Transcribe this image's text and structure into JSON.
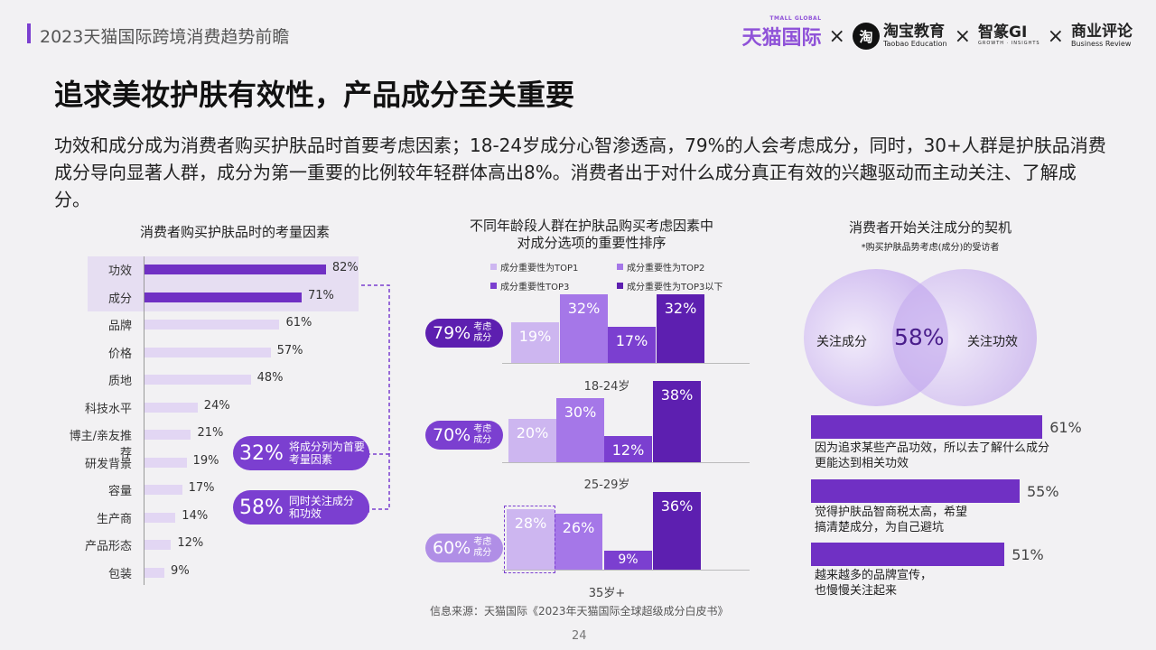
{
  "header": {
    "title": "2023天猫国际跨境消费趋势前瞻",
    "logos": {
      "tmall": "天猫国际",
      "tmall_small": "TMALL GLOBAL",
      "taobao": "淘宝教育",
      "taobao_small": "Taobao Education",
      "taobao_glyph": "淘",
      "zhizhuan": "智篆GI",
      "zhizhuan_small": "GROWTH · INSIGHTS",
      "shangye": "商业评论",
      "shangye_small": "Business Review",
      "x": "×"
    }
  },
  "main": {
    "title": "追求美妆护肤有效性，产品成分至关重要",
    "description": "功效和成分成为消费者购买护肤品时首要考虑因素；18-24岁成分心智渗透高，79%的人会考虑成分，同时，30+人群是护肤品消费成分导向显著人群，成分为第一重要的比例较年轻群体高出8%。消费者出于对什么成分真正有效的兴趣驱动而主动关注、了解成分。"
  },
  "callouts": {
    "c1_big": "32%",
    "c1_text": "将成分列为首要考量因素",
    "c2_big": "58%",
    "c2_text": "同时关注成分和功效"
  },
  "age_pills": [
    {
      "big": "79%",
      "sm": "考虑成分"
    },
    {
      "big": "70%",
      "sm": "考虑成分"
    },
    {
      "big": "60%",
      "sm": "考虑成分"
    }
  ],
  "footer": {
    "source": "信息来源：天猫国际《2023年天猫国际全球超级成分白皮书》",
    "page": "24"
  },
  "colors": {
    "accent": "#7030c4",
    "bar_light": "#e2d6f3",
    "tone1": "#cdb6f0",
    "tone2": "#a577e8",
    "tone3": "#7b3fd0",
    "tone4": "#5d1fb0"
  },
  "chart_data": [
    {
      "type": "bar",
      "orientation": "horizontal",
      "title": "消费者购买护肤品时的考量因素",
      "categories": [
        "功效",
        "成分",
        "品牌",
        "价格",
        "质地",
        "科技水平",
        "博主/亲友推荐",
        "研发背景",
        "容量",
        "生产商",
        "产品形态",
        "包装"
      ],
      "values": [
        82,
        71,
        61,
        57,
        48,
        24,
        21,
        19,
        17,
        14,
        12,
        9
      ],
      "labels": [
        "82%",
        "71%",
        "61%",
        "57%",
        "48%",
        "24%",
        "21%",
        "19%",
        "17%",
        "14%",
        "12%",
        "9%"
      ],
      "highlighted": [
        "功效",
        "成分"
      ]
    },
    {
      "type": "bar",
      "title": "不同年龄段人群在护肤品购买考虑因素中对成分选项的重要性排序",
      "title_lines": [
        "不同年龄段人群在护肤品购买考虑因素中",
        "对成分选项的重要性排序"
      ],
      "legend": [
        "成分重要性为TOP1",
        "成分重要性为TOP2",
        "成分重要性TOP3",
        "成分重要性为TOP3以下"
      ],
      "groups": [
        {
          "name": "18-24岁",
          "values": [
            19,
            32,
            17,
            32
          ],
          "labels": [
            "19%",
            "32%",
            "17%",
            "32%"
          ]
        },
        {
          "name": "25-29岁",
          "values": [
            20,
            30,
            12,
            38
          ],
          "labels": [
            "20%",
            "30%",
            "12%",
            "38%"
          ]
        },
        {
          "name": "35岁+",
          "values": [
            28,
            26,
            9,
            36
          ],
          "labels": [
            "28%",
            "26%",
            "9%",
            "36%"
          ]
        }
      ]
    },
    {
      "type": "bar",
      "orientation": "horizontal",
      "title": "消费者开始关注成分的契机",
      "note": "*购买护肤品势考虑(成分)的受访者",
      "venn": {
        "left": "关注成分",
        "right": "关注功效",
        "overlap": "58%"
      },
      "categories": [
        "因为追求某些产品功效，所以去了解什么成分更能达到相关功效",
        "觉得护肤品智商税太高，希望搞清楚成分，为自己避坑",
        "越来越多的品牌宣传，也慢慢关注起来"
      ],
      "values": [
        61,
        55,
        51
      ],
      "labels": [
        "61%",
        "55%",
        "51%"
      ]
    }
  ]
}
